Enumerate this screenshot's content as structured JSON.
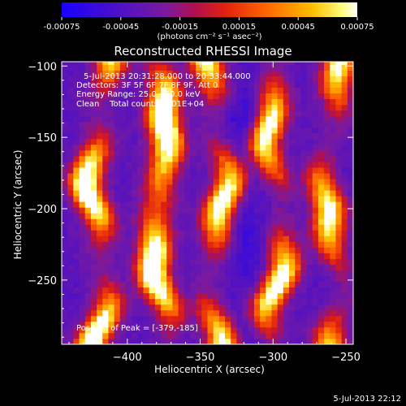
{
  "colorbar": {
    "tick_labels": [
      "-0.00075",
      "-0.00045",
      "-0.00015",
      "0.00015",
      "0.00045",
      "0.00075"
    ],
    "unit_label": "(photons cm⁻² s⁻¹ asec⁻²)"
  },
  "chart_data": {
    "type": "heatmap",
    "title": "Reconstructed RHESSI Image",
    "xlabel": "Heliocentric X (arcsec)",
    "ylabel": "Heliocentric Y (arcsec)",
    "xlim": [
      -445,
      -245
    ],
    "ylim": [
      -295,
      -97
    ],
    "x_ticks": [
      -400,
      -350,
      -300,
      -250
    ],
    "y_ticks": [
      -100,
      -150,
      -200,
      -250
    ],
    "color_range": [
      -0.00075,
      0.00075
    ],
    "colormap": "rainbow-like: blue-purple-red-orange-yellow-white",
    "annotations": [
      "5-Jul-2013 20:31:28.000 to 20:33:44.000",
      "Detectors: 3F 5F 6F 7F 8F 9F, Att 0",
      "Energy Range: 25.0 - 50.0 keV",
      "Clean    Total counts: 1.01E+04"
    ],
    "peak_label": "Position of Peak = [-379,-185]",
    "peak_position": [
      -379,
      -185
    ],
    "stripes": [
      {
        "x": -422,
        "amp": 0.95
      },
      {
        "x": -380,
        "amp": 1.0
      },
      {
        "x": -340,
        "amp": 0.85
      },
      {
        "x": -300,
        "amp": 0.85
      },
      {
        "x": -262,
        "amp": 0.8
      }
    ]
  },
  "footer_timestamp": "5-Jul-2013 22:12"
}
